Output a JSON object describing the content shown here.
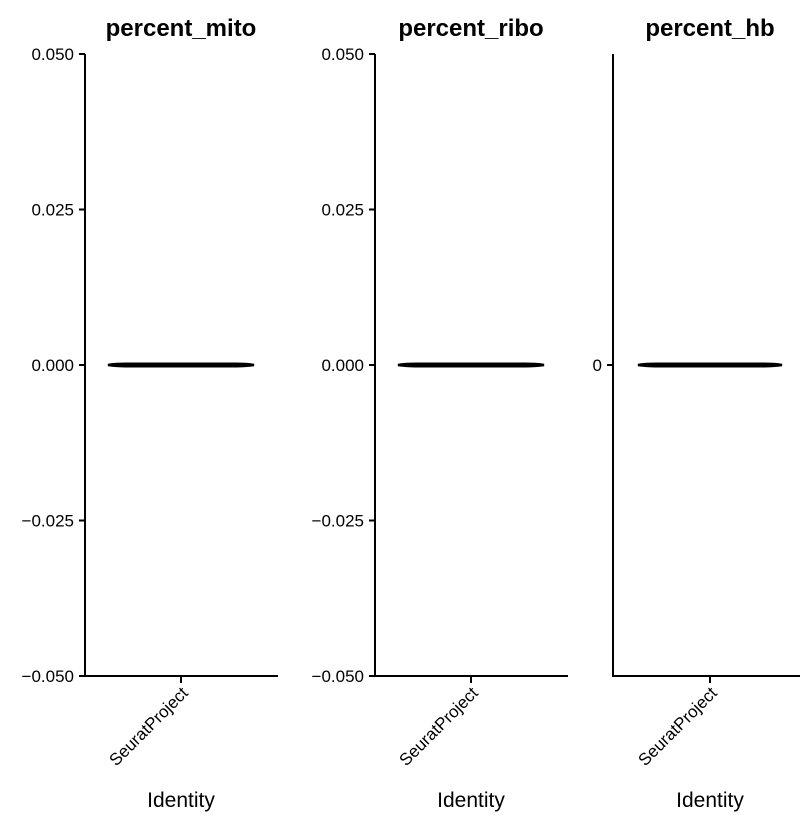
{
  "chart_data": [
    {
      "type": "violin",
      "title": "percent_mito",
      "xlabel": "Identity",
      "ylabel": "",
      "categories": [
        "SeuratProject"
      ],
      "values": [
        0
      ],
      "ylim": [
        -0.05,
        0.05
      ],
      "yticks": [
        0.05,
        0.025,
        0,
        -0.025,
        -0.05
      ],
      "ytick_labels": [
        "0.050",
        "0.025",
        "0.000",
        "−0.025",
        "−0.050"
      ]
    },
    {
      "type": "violin",
      "title": "percent_ribo",
      "xlabel": "Identity",
      "ylabel": "",
      "categories": [
        "SeuratProject"
      ],
      "values": [
        0
      ],
      "ylim": [
        -0.05,
        0.05
      ],
      "yticks": [
        0.05,
        0.025,
        0,
        -0.025,
        -0.05
      ],
      "ytick_labels": [
        "0.050",
        "0.025",
        "0.000",
        "−0.025",
        "−0.050"
      ]
    },
    {
      "type": "violin",
      "title": "percent_hb",
      "xlabel": "Identity",
      "ylabel": "",
      "categories": [
        "SeuratProject"
      ],
      "values": [
        0
      ],
      "ylim": [
        -0.05,
        0.05
      ],
      "yticks": [
        0
      ],
      "ytick_labels": [
        "0"
      ]
    }
  ]
}
